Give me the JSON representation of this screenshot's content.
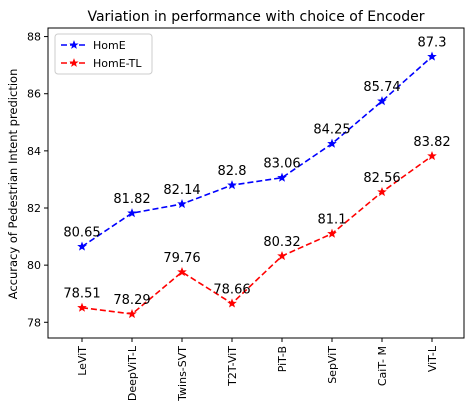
{
  "chart_data": {
    "type": "line",
    "title": "Variation in performance with choice of Encoder",
    "xlabel": "",
    "ylabel": "Accuracy of Pedestrian Intent prediction",
    "categories": [
      "LeViT",
      "DeepViT-L",
      "Twins-SVT",
      "T2T-ViT",
      "PiT-B",
      "SepViT",
      "CaiT- M",
      "ViT-L"
    ],
    "ylim": [
      77.45,
      88.3
    ],
    "yticks": [
      78,
      80,
      82,
      84,
      86,
      88
    ],
    "grid": false,
    "legend_position": "upper-left",
    "series": [
      {
        "name": "HomE",
        "color": "#0000ff",
        "values": [
          80.65,
          81.82,
          82.14,
          82.8,
          83.06,
          84.25,
          85.74,
          87.3
        ],
        "labels": [
          "80.65",
          "81.82",
          "82.14",
          "82.8",
          "83.06",
          "84.25",
          "85.74",
          "87.3"
        ]
      },
      {
        "name": "HomE-TL",
        "color": "#ff0000",
        "values": [
          78.51,
          78.29,
          79.76,
          78.66,
          80.32,
          81.1,
          82.56,
          83.82
        ],
        "labels": [
          "78.51",
          "78.29",
          "79.76",
          "78.66",
          "80.32",
          "81.1",
          "82.56",
          "83.82"
        ]
      }
    ]
  }
}
